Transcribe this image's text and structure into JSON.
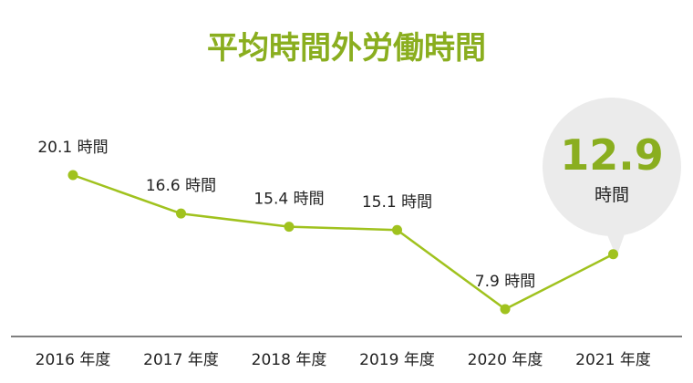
{
  "chart_data": {
    "type": "line",
    "title": "平均時間外労働時間",
    "categories": [
      "2016 年度",
      "2017 年度",
      "2018 年度",
      "2019 年度",
      "2020 年度",
      "2021 年度"
    ],
    "series": [
      {
        "values": [
          20.1,
          16.6,
          15.4,
          15.1,
          7.9,
          12.9
        ],
        "point_labels": [
          "20.1 時間",
          "16.6 時間",
          "15.4 時間",
          "15.1 時間",
          "7.9 時間",
          ""
        ]
      }
    ],
    "callout": {
      "value": "12.9",
      "unit": "時間"
    },
    "colors": {
      "accent": "#8aae1f",
      "line": "#a0c21e",
      "bubble": "#ebebeb",
      "axis": "#333333",
      "text": "#222222"
    }
  }
}
